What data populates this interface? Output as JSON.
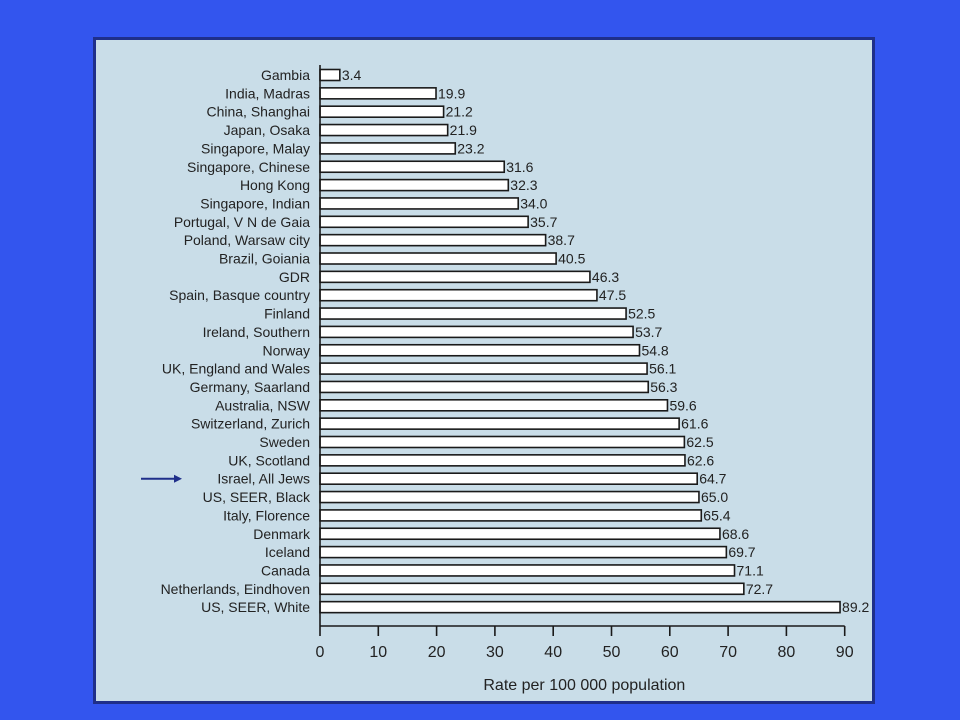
{
  "colors": {
    "background": "#3355ee",
    "panel": "#c9dde8",
    "panel_border": "#1f2f8a",
    "bar_fill": "#ffffff",
    "bar_stroke": "#1a1a1a",
    "arrow": "#1f2f8a"
  },
  "chart_data": {
    "type": "bar",
    "orientation": "horizontal",
    "categories": [
      "Gambia",
      "India, Madras",
      "China, Shanghai",
      "Japan, Osaka",
      "Singapore, Malay",
      "Singapore, Chinese",
      "Hong Kong",
      "Singapore, Indian",
      "Portugal, V N de Gaia",
      "Poland, Warsaw city",
      "Brazil, Goiania",
      "GDR",
      "Spain, Basque country",
      "Finland",
      "Ireland, Southern",
      "Norway",
      "UK, England and Wales",
      "Germany, Saarland",
      "Australia, NSW",
      "Switzerland, Zurich",
      "Sweden",
      "UK, Scotland",
      "Israel, All Jews",
      "US, SEER, Black",
      "Italy, Florence",
      "Denmark",
      "Iceland",
      "Canada",
      "Netherlands, Eindhoven",
      "US, SEER, White"
    ],
    "values": [
      3.4,
      19.9,
      21.2,
      21.9,
      23.2,
      31.6,
      32.3,
      34.0,
      35.7,
      38.7,
      40.5,
      46.3,
      47.5,
      52.5,
      53.7,
      54.8,
      56.1,
      56.3,
      59.6,
      61.6,
      62.5,
      62.6,
      64.7,
      65.0,
      65.4,
      68.6,
      69.7,
      71.1,
      72.7,
      89.2
    ],
    "value_labels": [
      "3.4",
      "19.9",
      "21.2",
      "21.9",
      "23.2",
      "31.6",
      "32.3",
      "34.0",
      "35.7",
      "38.7",
      "40.5",
      "46.3",
      "47.5",
      "52.5",
      "53.7",
      "54.8",
      "56.1",
      "56.3",
      "59.6",
      "61.6",
      "62.5",
      "62.6",
      "64.7",
      "65.0",
      "65.4",
      "68.6",
      "69.7",
      "71.1",
      "72.7",
      "89.2"
    ],
    "xlim": [
      0,
      90
    ],
    "xticks": [
      "0",
      "10",
      "20",
      "30",
      "40",
      "50",
      "60",
      "70",
      "80",
      "90"
    ],
    "xlabel": "Rate per 100 000 population",
    "ylabel": "",
    "title": "",
    "grid": false,
    "legend": "none",
    "highlighted_category": "Israel, All Jews",
    "highlight_marker": "arrow-right"
  }
}
